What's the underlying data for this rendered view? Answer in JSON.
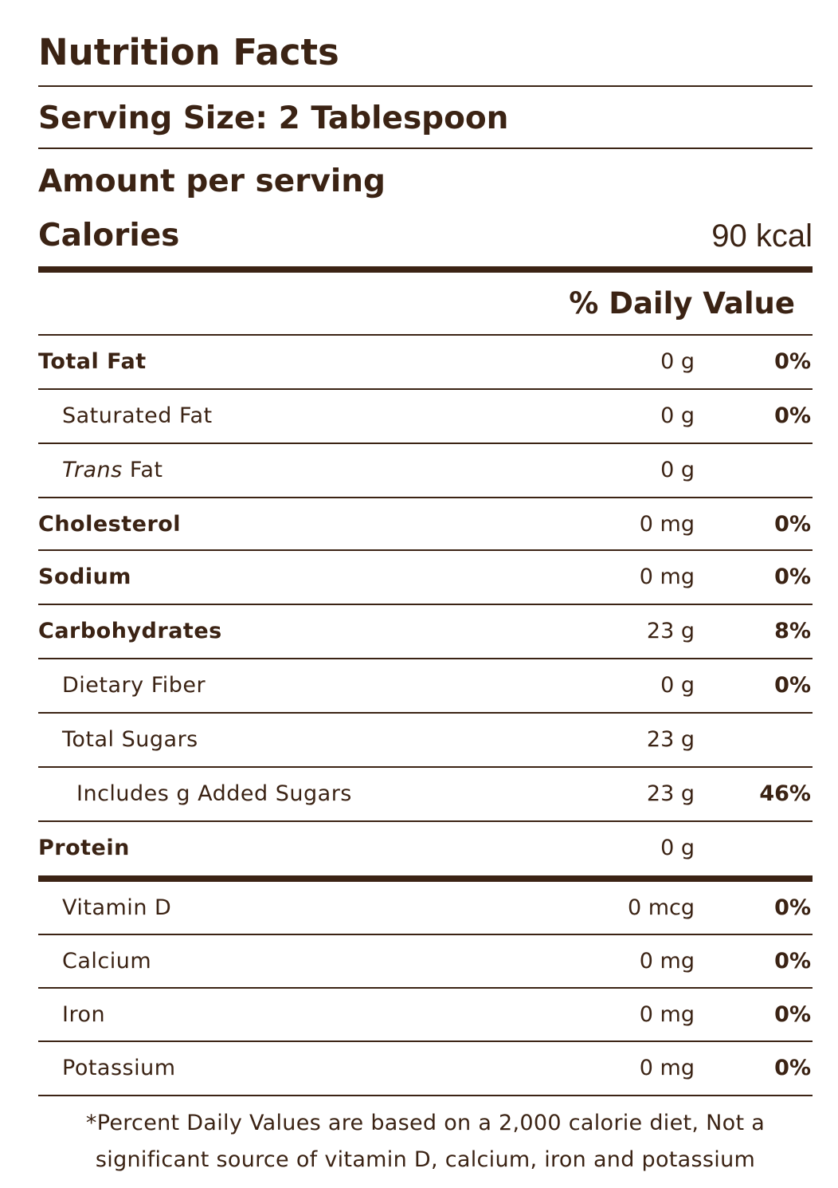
{
  "label": {
    "title": "Nutrition Facts",
    "serving_size": "Serving Size: 2 Tablespoon",
    "amount_per_serving": "Amount per serving",
    "calories_label": "Calories",
    "calories_value": "90 kcal",
    "daily_value_header": "% Daily Value"
  },
  "nutrients": [
    {
      "name": "Total Fat",
      "qty": "0 g",
      "dv": "0%"
    },
    {
      "name": "Saturated Fat",
      "qty": "0 g",
      "dv": "0%"
    },
    {
      "name_italic": "Trans",
      "name_rest": " Fat",
      "qty": "0 g",
      "dv": ""
    },
    {
      "name": "Cholesterol",
      "qty": "0 mg",
      "dv": "0%"
    },
    {
      "name": "Sodium",
      "qty": "0 mg",
      "dv": "0%"
    },
    {
      "name": "Carbohydrates",
      "qty": "23 g",
      "dv": "8%"
    },
    {
      "name": "Dietary Fiber",
      "qty": "0 g",
      "dv": "0%"
    },
    {
      "name": "Total Sugars",
      "qty": "23 g",
      "dv": ""
    },
    {
      "name": "Includes g Added Sugars",
      "qty": "23 g",
      "dv": "46%"
    },
    {
      "name": "Protein",
      "qty": "0 g",
      "dv": ""
    }
  ],
  "vitamins": [
    {
      "name": "Vitamin D",
      "qty": "0 mcg",
      "dv": "0%"
    },
    {
      "name": "Calcium",
      "qty": "0 mg",
      "dv": "0%"
    },
    {
      "name": "Iron",
      "qty": "0 mg",
      "dv": "0%"
    },
    {
      "name": "Potassium",
      "qty": "0 mg",
      "dv": "0%"
    }
  ],
  "footnote": {
    "line1": "*Percent Daily Values are based on a 2,000 calorie diet, Not a",
    "line2": "significant source of vitamin D, calcium, iron and potassium"
  }
}
